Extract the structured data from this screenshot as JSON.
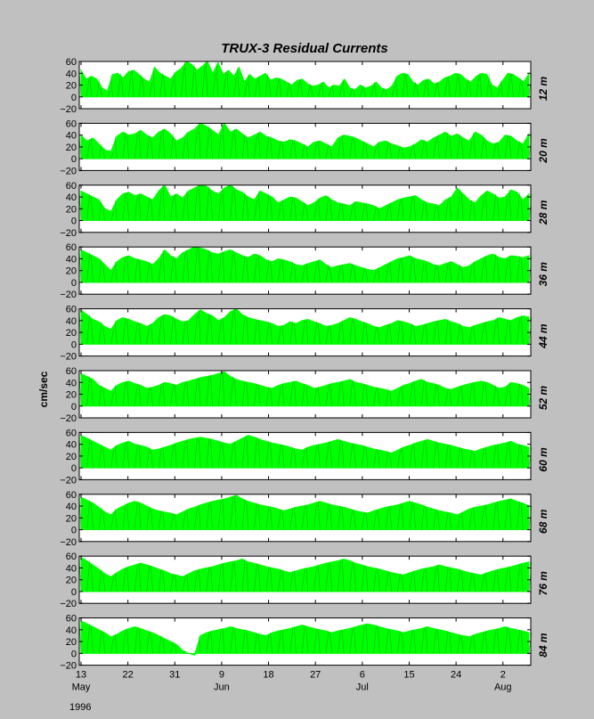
{
  "chart_data": {
    "type": "area",
    "title": "TRUX-3   Residual Currents",
    "ylabel": "cm/sec",
    "ylim": [
      -20,
      60
    ],
    "yticks": [
      "60",
      "40",
      "20",
      "0",
      "−20"
    ],
    "year": "1996",
    "x_ticks": [
      {
        "day": 0,
        "label": "13",
        "month": "May"
      },
      {
        "day": 9,
        "label": "22",
        "month": ""
      },
      {
        "day": 18,
        "label": "31",
        "month": ""
      },
      {
        "day": 27,
        "label": "9",
        "month": "Jun"
      },
      {
        "day": 36,
        "label": "18",
        "month": ""
      },
      {
        "day": 45,
        "label": "27",
        "month": ""
      },
      {
        "day": 54,
        "label": "6",
        "month": "Jul"
      },
      {
        "day": 63,
        "label": "15",
        "month": ""
      },
      {
        "day": 72,
        "label": "24",
        "month": ""
      },
      {
        "day": 81,
        "label": "2",
        "month": "Aug"
      }
    ],
    "x_range_days": [
      0,
      86
    ],
    "fill_color": "#00ff00",
    "series": [
      {
        "name": "12 m",
        "values": [
          45,
          30,
          35,
          30,
          15,
          10,
          38,
          40,
          32,
          43,
          45,
          38,
          30,
          25,
          50,
          40,
          35,
          30,
          42,
          48,
          60,
          55,
          45,
          52,
          60,
          40,
          58,
          38,
          45,
          35,
          50,
          25,
          38,
          30,
          35,
          40,
          28,
          32,
          30,
          25,
          20,
          28,
          30,
          22,
          18,
          20,
          25,
          15,
          20,
          18,
          30,
          15,
          12,
          20,
          15,
          18,
          25,
          15,
          12,
          18,
          35,
          40,
          38,
          25,
          20,
          28,
          30,
          22,
          25,
          32,
          35,
          40,
          38,
          30,
          25,
          35,
          40,
          38,
          20,
          15,
          28,
          40,
          38,
          32,
          25,
          40
        ]
      },
      {
        "name": "20 m",
        "values": [
          40,
          30,
          35,
          25,
          15,
          12,
          38,
          45,
          40,
          42,
          48,
          40,
          35,
          45,
          50,
          42,
          30,
          35,
          45,
          50,
          60,
          55,
          48,
          40,
          60,
          45,
          50,
          42,
          35,
          40,
          45,
          38,
          35,
          30,
          28,
          32,
          30,
          25,
          20,
          28,
          30,
          25,
          20,
          35,
          40,
          38,
          35,
          30,
          25,
          20,
          28,
          30,
          25,
          22,
          18,
          20,
          25,
          32,
          28,
          35,
          40,
          45,
          38,
          42,
          35,
          30,
          45,
          40,
          30,
          25,
          28,
          40,
          38,
          30,
          25,
          42
        ]
      },
      {
        "name": "28 m",
        "values": [
          50,
          45,
          40,
          35,
          20,
          15,
          35,
          45,
          48,
          42,
          45,
          40,
          35,
          50,
          60,
          40,
          45,
          38,
          50,
          55,
          60,
          58,
          50,
          45,
          55,
          60,
          52,
          48,
          40,
          35,
          50,
          45,
          40,
          30,
          35,
          40,
          38,
          32,
          25,
          30,
          38,
          42,
          35,
          30,
          28,
          25,
          32,
          30,
          28,
          25,
          20,
          25,
          30,
          35,
          38,
          40,
          42,
          35,
          30,
          28,
          25,
          35,
          40,
          55,
          45,
          35,
          30,
          42,
          50,
          45,
          38,
          40,
          52,
          48,
          35,
          45
        ]
      },
      {
        "name": "36 m",
        "values": [
          55,
          50,
          45,
          40,
          30,
          20,
          35,
          42,
          45,
          40,
          38,
          35,
          30,
          40,
          55,
          45,
          40,
          50,
          55,
          60,
          58,
          55,
          50,
          48,
          52,
          55,
          50,
          45,
          42,
          48,
          45,
          38,
          35,
          40,
          38,
          35,
          30,
          28,
          32,
          35,
          38,
          30,
          25,
          28,
          30,
          32,
          28,
          25,
          22,
          20,
          25,
          30,
          35,
          40,
          42,
          45,
          40,
          38,
          35,
          30,
          28,
          32,
          35,
          30,
          25,
          28,
          35,
          40,
          45,
          48,
          42,
          40,
          45,
          44,
          42,
          45
        ]
      },
      {
        "name": "44 m",
        "values": [
          58,
          50,
          42,
          38,
          30,
          25,
          40,
          45,
          42,
          38,
          35,
          30,
          35,
          45,
          50,
          48,
          42,
          38,
          40,
          50,
          58,
          52,
          48,
          40,
          45,
          55,
          60,
          50,
          45,
          42,
          40,
          38,
          35,
          30,
          32,
          38,
          35,
          40,
          42,
          38,
          35,
          30,
          32,
          35,
          40,
          45,
          42,
          38,
          35,
          30,
          28,
          32,
          35,
          40,
          38,
          35,
          30,
          32,
          35,
          38,
          40,
          42,
          38,
          35,
          30,
          28,
          32,
          35,
          38,
          40,
          45,
          42,
          40,
          45,
          48,
          46
        ]
      },
      {
        "name": "52 m",
        "values": [
          55,
          50,
          45,
          35,
          30,
          25,
          35,
          40,
          42,
          38,
          35,
          30,
          32,
          35,
          40,
          38,
          35,
          40,
          42,
          45,
          48,
          50,
          52,
          55,
          58,
          50,
          45,
          42,
          40,
          38,
          35,
          32,
          30,
          35,
          38,
          40,
          42,
          38,
          35,
          30,
          32,
          35,
          38,
          40,
          42,
          45,
          40,
          38,
          35,
          32,
          30,
          28,
          25,
          30,
          35,
          38,
          42,
          45,
          40,
          38,
          35,
          30,
          28,
          32,
          35,
          38,
          40,
          42,
          40,
          35,
          30,
          32,
          40,
          38,
          35,
          30
        ]
      },
      {
        "name": "60 m",
        "values": [
          55,
          50,
          45,
          40,
          35,
          30,
          38,
          42,
          45,
          40,
          38,
          35,
          30,
          32,
          35,
          38,
          42,
          45,
          48,
          50,
          52,
          50,
          48,
          45,
          42,
          40,
          45,
          50,
          55,
          52,
          48,
          45,
          42,
          40,
          38,
          35,
          32,
          30,
          35,
          38,
          40,
          42,
          45,
          48,
          45,
          42,
          40,
          38,
          35,
          32,
          30,
          28,
          25,
          30,
          35,
          38,
          42,
          45,
          48,
          45,
          42,
          40,
          38,
          35,
          32,
          30,
          28,
          32,
          35,
          38,
          40,
          42,
          45,
          40,
          38,
          35
        ]
      },
      {
        "name": "68 m",
        "values": [
          55,
          50,
          45,
          38,
          30,
          25,
          35,
          40,
          45,
          48,
          45,
          40,
          35,
          32,
          30,
          28,
          25,
          30,
          35,
          38,
          42,
          45,
          48,
          50,
          52,
          55,
          58,
          52,
          48,
          45,
          42,
          40,
          38,
          35,
          32,
          35,
          38,
          40,
          42,
          45,
          48,
          45,
          42,
          40,
          38,
          35,
          32,
          30,
          28,
          32,
          35,
          38,
          40,
          42,
          45,
          48,
          45,
          42,
          38,
          35,
          32,
          30,
          28,
          25,
          30,
          35,
          38,
          40,
          42,
          45,
          48,
          50,
          52,
          48,
          45,
          40
        ]
      },
      {
        "name": "76 m",
        "values": [
          58,
          52,
          45,
          38,
          30,
          25,
          32,
          38,
          42,
          45,
          48,
          45,
          42,
          38,
          35,
          30,
          28,
          25,
          30,
          35,
          38,
          40,
          42,
          45,
          48,
          50,
          52,
          55,
          50,
          48,
          45,
          42,
          40,
          38,
          35,
          32,
          35,
          38,
          40,
          42,
          45,
          48,
          50,
          52,
          55,
          52,
          48,
          45,
          42,
          40,
          38,
          35,
          32,
          30,
          28,
          32,
          35,
          38,
          40,
          42,
          45,
          42,
          40,
          38,
          35,
          32,
          30,
          28,
          32,
          35,
          38,
          40,
          42,
          45,
          48,
          50
        ]
      },
      {
        "name": "84 m",
        "values": [
          55,
          50,
          45,
          40,
          35,
          28,
          32,
          38,
          42,
          45,
          42,
          38,
          35,
          30,
          25,
          20,
          15,
          5,
          0,
          -3,
          30,
          35,
          38,
          40,
          42,
          45,
          42,
          40,
          38,
          35,
          32,
          30,
          35,
          38,
          40,
          42,
          45,
          48,
          45,
          42,
          40,
          38,
          35,
          38,
          40,
          42,
          45,
          48,
          50,
          48,
          45,
          42,
          40,
          38,
          35,
          38,
          40,
          42,
          45,
          42,
          40,
          38,
          35,
          32,
          30,
          28,
          32,
          35,
          38,
          40,
          42,
          45,
          42,
          40,
          38,
          35
        ]
      }
    ]
  }
}
